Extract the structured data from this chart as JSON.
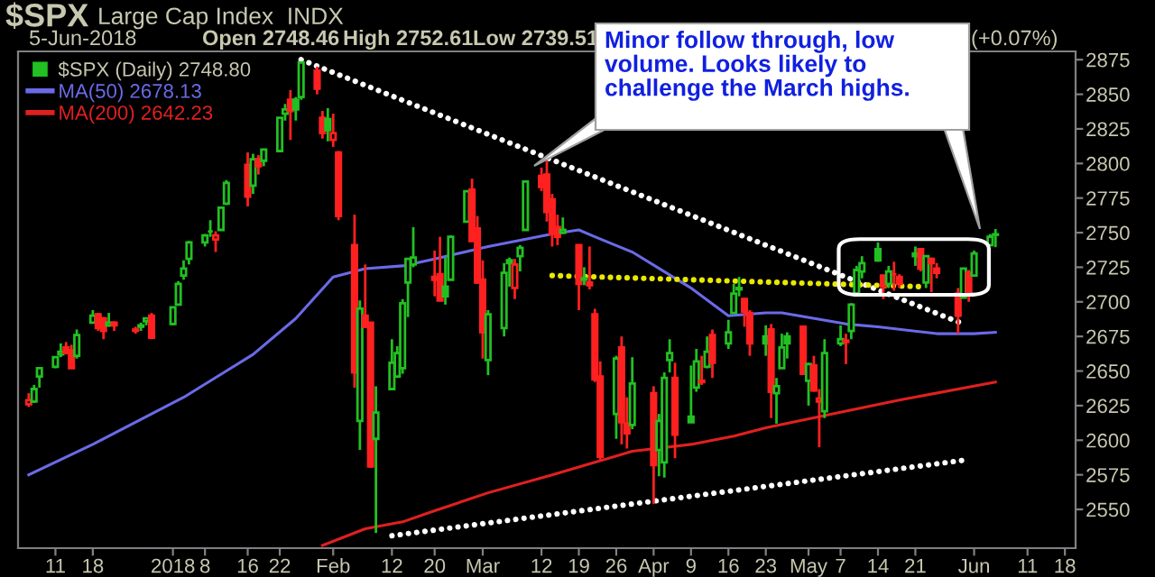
{
  "chart_data": {
    "type": "candlestick",
    "title": "$SPX",
    "subtitle": "Large Cap Index  INDX",
    "annotations": [
      "5-Jun-2018",
      "Open 2748.46",
      "High 2752.61",
      "Low 2739.51",
      "(+0.07%)",
      "Minor follow through, low\nvolume. Looks likely to\nchallenge the March highs."
    ],
    "x": [
      "2017-12-06",
      "2017-12-07",
      "2017-12-08",
      "2017-12-11",
      "2017-12-12",
      "2017-12-13",
      "2017-12-14",
      "2017-12-15",
      "2017-12-18",
      "2017-12-19",
      "2017-12-20",
      "2017-12-21",
      "2017-12-22",
      "2017-12-26",
      "2017-12-27",
      "2017-12-28",
      "2017-12-29",
      "2018-01-02",
      "2018-01-03",
      "2018-01-04",
      "2018-01-05",
      "2018-01-08",
      "2018-01-09",
      "2018-01-10",
      "2018-01-11",
      "2018-01-12",
      "2018-01-16",
      "2018-01-17",
      "2018-01-18",
      "2018-01-19",
      "2018-01-22",
      "2018-01-23",
      "2018-01-24",
      "2018-01-25",
      "2018-01-26",
      "2018-01-29",
      "2018-01-30",
      "2018-01-31",
      "2018-02-01",
      "2018-02-02",
      "2018-02-05",
      "2018-02-06",
      "2018-02-07",
      "2018-02-08",
      "2018-02-09",
      "2018-02-12",
      "2018-02-13",
      "2018-02-14",
      "2018-02-15",
      "2018-02-16",
      "2018-02-20",
      "2018-02-21",
      "2018-02-22",
      "2018-02-23",
      "2018-02-26",
      "2018-02-27",
      "2018-02-28",
      "2018-03-01",
      "2018-03-02",
      "2018-03-05",
      "2018-03-06",
      "2018-03-07",
      "2018-03-08",
      "2018-03-09",
      "2018-03-12",
      "2018-03-13",
      "2018-03-14",
      "2018-03-15",
      "2018-03-16",
      "2018-03-19",
      "2018-03-20",
      "2018-03-21",
      "2018-03-22",
      "2018-03-23",
      "2018-03-26",
      "2018-03-27",
      "2018-03-28",
      "2018-03-29",
      "2018-04-02",
      "2018-04-03",
      "2018-04-04",
      "2018-04-05",
      "2018-04-06",
      "2018-04-09",
      "2018-04-10",
      "2018-04-11",
      "2018-04-12",
      "2018-04-13",
      "2018-04-16",
      "2018-04-17",
      "2018-04-18",
      "2018-04-19",
      "2018-04-20",
      "2018-04-23",
      "2018-04-24",
      "2018-04-25",
      "2018-04-26",
      "2018-04-27",
      "2018-04-30",
      "2018-05-01",
      "2018-05-02",
      "2018-05-03",
      "2018-05-04",
      "2018-05-07",
      "2018-05-08",
      "2018-05-09",
      "2018-05-10",
      "2018-05-11",
      "2018-05-14",
      "2018-05-15",
      "2018-05-16",
      "2018-05-17",
      "2018-05-18",
      "2018-05-21",
      "2018-05-22",
      "2018-05-23",
      "2018-05-24",
      "2018-05-25",
      "2018-05-29",
      "2018-05-30",
      "2018-05-31",
      "2018-06-01",
      "2018-06-04",
      "2018-06-05"
    ],
    "xlim": [
      "2017-12-04",
      "2018-06-20"
    ],
    "xticks": [
      {
        "value": "2017-12-11",
        "label": "11"
      },
      {
        "value": "2017-12-18",
        "label": "18"
      },
      {
        "value": "2018-01-02",
        "label": "2018"
      },
      {
        "value": "2018-01-08",
        "label": "8"
      },
      {
        "value": "2018-01-16",
        "label": "16"
      },
      {
        "value": "2018-01-22",
        "label": "22"
      },
      {
        "value": "2018-02-01",
        "label": "Feb"
      },
      {
        "value": "2018-02-12",
        "label": "12"
      },
      {
        "value": "2018-02-20",
        "label": "20"
      },
      {
        "value": "2018-03-01",
        "label": "Mar"
      },
      {
        "value": "2018-03-12",
        "label": "12"
      },
      {
        "value": "2018-03-19",
        "label": "19"
      },
      {
        "value": "2018-03-26",
        "label": "26"
      },
      {
        "value": "2018-04-02",
        "label": "Apr"
      },
      {
        "value": "2018-04-09",
        "label": "9"
      },
      {
        "value": "2018-04-16",
        "label": "16"
      },
      {
        "value": "2018-04-23",
        "label": "23"
      },
      {
        "value": "2018-05-01",
        "label": "May"
      },
      {
        "value": "2018-05-07",
        "label": "7"
      },
      {
        "value": "2018-05-14",
        "label": "14"
      },
      {
        "value": "2018-05-21",
        "label": "21"
      },
      {
        "value": "2018-06-01",
        "label": "Jun"
      },
      {
        "value": "2018-06-11",
        "label": "11"
      },
      {
        "value": "2018-06-18",
        "label": "18"
      }
    ],
    "ylim": [
      2522,
      2881
    ],
    "yticks": [
      2550,
      2575,
      2600,
      2625,
      2650,
      2675,
      2700,
      2725,
      2750,
      2775,
      2800,
      2825,
      2850,
      2875
    ],
    "legend": "top left",
    "series": [
      {
        "type": "candlestick",
        "name": "$SPX (Daily) 2748.80",
        "color": "#22c022",
        "ohlc": [
          [
            2626,
            2634,
            2624,
            2629
          ],
          [
            2628,
            2640,
            2627,
            2637
          ],
          [
            2646,
            2652,
            2638,
            2652
          ],
          [
            2653,
            2660,
            2652,
            2660
          ],
          [
            2662,
            2670,
            2660,
            2664
          ],
          [
            2667,
            2671,
            2662,
            2663
          ],
          [
            2665,
            2669,
            2652,
            2652
          ],
          [
            2661,
            2680,
            2659,
            2676
          ],
          [
            2685,
            2694,
            2685,
            2690
          ],
          [
            2691,
            2692,
            2679,
            2681
          ],
          [
            2688,
            2689,
            2673,
            2679
          ],
          [
            2683,
            2692,
            2682,
            2685
          ],
          [
            2685,
            2686,
            2679,
            2683
          ],
          [
            2679,
            2682,
            2677,
            2680
          ],
          [
            2682,
            2685,
            2679,
            2683
          ],
          [
            2686,
            2688,
            2683,
            2688
          ],
          [
            2690,
            2692,
            2673,
            2674
          ],
          [
            2684,
            2696,
            2683,
            2696
          ],
          [
            2698,
            2715,
            2698,
            2713
          ],
          [
            2719,
            2730,
            2716,
            2724
          ],
          [
            2731,
            2744,
            2727,
            2743
          ],
          [
            2743,
            2749,
            2740,
            2748
          ],
          [
            2751,
            2759,
            2747,
            2751
          ],
          [
            2745,
            2751,
            2736,
            2748
          ],
          [
            2752,
            2768,
            2752,
            2768
          ],
          [
            2771,
            2788,
            2770,
            2786
          ],
          [
            2799,
            2808,
            2769,
            2776
          ],
          [
            2784,
            2807,
            2778,
            2803
          ],
          [
            2803,
            2806,
            2792,
            2798
          ],
          [
            2802,
            2810,
            2798,
            2810
          ],
          [
            2809,
            2833,
            2808,
            2833
          ],
          [
            2836,
            2843,
            2831,
            2839
          ],
          [
            2846,
            2853,
            2817,
            2838
          ],
          [
            2846,
            2848,
            2831,
            2839
          ],
          [
            2848,
            2873,
            2846,
            2873
          ],
          [
            2867,
            2870,
            2850,
            2854
          ],
          [
            2833,
            2838,
            2818,
            2822
          ],
          [
            2832,
            2840,
            2816,
            2824
          ],
          [
            2817,
            2836,
            2812,
            2822
          ],
          [
            2808,
            2809,
            2759,
            2762
          ],
          [
            2741,
            2763,
            2638,
            2649
          ],
          [
            2614,
            2701,
            2593,
            2695
          ],
          [
            2690,
            2727,
            2681,
            2682
          ],
          [
            2685,
            2685,
            2580,
            2581
          ],
          [
            2601,
            2639,
            2533,
            2620
          ],
          [
            2637,
            2673,
            2637,
            2656
          ],
          [
            2646,
            2668,
            2645,
            2663
          ],
          [
            2652,
            2702,
            2648,
            2699
          ],
          [
            2714,
            2731,
            2689,
            2731
          ],
          [
            2727,
            2754,
            2725,
            2732
          ],
          [
            2718,
            2737,
            2704,
            2716
          ],
          [
            2720,
            2747,
            2701,
            2701
          ],
          [
            2711,
            2732,
            2698,
            2704
          ],
          [
            2716,
            2748,
            2716,
            2747
          ],
          [
            2758,
            2780,
            2758,
            2780
          ],
          [
            2781,
            2789,
            2744,
            2744
          ],
          [
            2753,
            2762,
            2713,
            2714
          ],
          [
            2716,
            2730,
            2659,
            2678
          ],
          [
            2658,
            2694,
            2647,
            2691
          ],
          [
            2681,
            2728,
            2675,
            2721
          ],
          [
            2730,
            2732,
            2711,
            2728
          ],
          [
            2710,
            2731,
            2702,
            2727
          ],
          [
            2733,
            2741,
            2722,
            2739
          ],
          [
            2752,
            2787,
            2752,
            2787
          ],
          [
            2791,
            2797,
            2780,
            2783
          ],
          [
            2792,
            2802,
            2758,
            2765
          ],
          [
            2774,
            2778,
            2740,
            2749
          ],
          [
            2754,
            2763,
            2741,
            2747
          ],
          [
            2750,
            2761,
            2749,
            2752
          ],
          [
            2741,
            2741,
            2694,
            2713
          ],
          [
            2716,
            2725,
            2712,
            2717
          ],
          [
            2714,
            2740,
            2709,
            2712
          ],
          [
            2691,
            2695,
            2642,
            2644
          ],
          [
            2646,
            2657,
            2586,
            2588
          ],
          [
            2619,
            2661,
            2601,
            2659
          ],
          [
            2667,
            2675,
            2597,
            2613
          ],
          [
            2612,
            2631,
            2594,
            2605
          ],
          [
            2611,
            2660,
            2608,
            2641
          ],
          [
            2634,
            2639,
            2554,
            2582
          ],
          [
            2593,
            2619,
            2574,
            2614
          ],
          [
            2584,
            2649,
            2573,
            2645
          ],
          [
            2658,
            2673,
            2649,
            2663
          ],
          [
            2645,
            2656,
            2587,
            2604
          ],
          [
            2617,
            2654,
            2613,
            2613
          ],
          [
            2638,
            2666,
            2635,
            2657
          ],
          [
            2643,
            2661,
            2640,
            2642
          ],
          [
            2653,
            2675,
            2652,
            2664
          ],
          [
            2676,
            2680,
            2645,
            2656
          ],
          [
            2670,
            2687,
            2666,
            2678
          ],
          [
            2692,
            2713,
            2692,
            2706
          ],
          [
            2710,
            2718,
            2704,
            2709
          ],
          [
            2702,
            2703,
            2682,
            2693
          ],
          [
            2692,
            2694,
            2661,
            2670
          ],
          [
            2675,
            2683,
            2661,
            2670
          ],
          [
            2680,
            2684,
            2616,
            2635
          ],
          [
            2634,
            2645,
            2612,
            2639
          ],
          [
            2652,
            2677,
            2652,
            2667
          ],
          [
            2675,
            2678,
            2659,
            2670
          ],
          [
            2682,
            2683,
            2648,
            2648
          ],
          [
            2643,
            2656,
            2625,
            2655
          ],
          [
            2654,
            2661,
            2635,
            2636
          ],
          [
            2628,
            2637,
            2595,
            2630
          ],
          [
            2621,
            2673,
            2616,
            2663
          ],
          [
            2670,
            2683,
            2668,
            2673
          ],
          [
            2671,
            2677,
            2655,
            2672
          ],
          [
            2679,
            2699,
            2673,
            2698
          ],
          [
            2706,
            2726,
            2705,
            2723
          ],
          [
            2722,
            2733,
            2717,
            2728
          ],
          [
            2738,
            2743,
            2729,
            2730
          ],
          [
            2719,
            2719,
            2702,
            2711
          ],
          [
            2713,
            2726,
            2710,
            2722
          ],
          [
            2720,
            2729,
            2708,
            2720
          ],
          [
            2718,
            2720,
            2710,
            2713
          ],
          [
            2735,
            2740,
            2726,
            2733
          ],
          [
            2738,
            2739,
            2722,
            2724
          ],
          [
            2714,
            2733,
            2710,
            2733
          ],
          [
            2731,
            2732,
            2707,
            2728
          ],
          [
            2724,
            2728,
            2717,
            2721
          ],
          [
            2706,
            2710,
            2677,
            2690
          ],
          [
            2703,
            2724,
            2703,
            2724
          ],
          [
            2721,
            2723,
            2700,
            2705
          ],
          [
            2719,
            2737,
            2719,
            2735
          ],
          [
            2741,
            2749,
            2741,
            2747
          ],
          [
            2748.46,
            2752.61,
            2739.51,
            2748.8
          ]
        ],
        "colors": [
          "#ff2020",
          "#22c022",
          "#22c022",
          "#22c022",
          "#22c022",
          "#ff2020",
          "#ff2020",
          "#22c022",
          "#22c022",
          "#ff2020",
          "#ff2020",
          "#22c022",
          "#ff2020",
          "#ff2020",
          "#22c022",
          "#22c022",
          "#ff2020",
          "#22c022",
          "#22c022",
          "#22c022",
          "#22c022",
          "#22c022",
          "#22c022",
          "#ff2020",
          "#22c022",
          "#22c022",
          "#ff2020",
          "#22c022",
          "#ff2020",
          "#22c022",
          "#22c022",
          "#22c022",
          "#ff2020",
          "#22c022",
          "#22c022",
          "#ff2020",
          "#ff2020",
          "#22c022",
          "#ff2020",
          "#ff2020",
          "#ff2020",
          "#22c022",
          "#ff2020",
          "#ff2020",
          "#22c022",
          "#22c022",
          "#22c022",
          "#22c022",
          "#22c022",
          "#22c022",
          "#ff2020",
          "#ff2020",
          "#22c022",
          "#22c022",
          "#22c022",
          "#ff2020",
          "#ff2020",
          "#ff2020",
          "#22c022",
          "#22c022",
          "#22c022",
          "#ff2020",
          "#22c022",
          "#22c022",
          "#ff2020",
          "#ff2020",
          "#ff2020",
          "#ff2020",
          "#22c022",
          "#ff2020",
          "#22c022",
          "#ff2020",
          "#ff2020",
          "#ff2020",
          "#22c022",
          "#ff2020",
          "#ff2020",
          "#22c022",
          "#ff2020",
          "#22c022",
          "#22c022",
          "#22c022",
          "#ff2020",
          "#22c022",
          "#22c022",
          "#ff2020",
          "#22c022",
          "#ff2020",
          "#22c022",
          "#22c022",
          "#22c022",
          "#ff2020",
          "#ff2020",
          "#22c022",
          "#ff2020",
          "#22c022",
          "#22c022",
          "#22c022",
          "#ff2020",
          "#22c022",
          "#ff2020",
          "#ff2020",
          "#22c022",
          "#22c022",
          "#ff2020",
          "#22c022",
          "#22c022",
          "#22c022",
          "#22c022",
          "#ff2020",
          "#22c022",
          "#ff2020",
          "#ff2020",
          "#22c022",
          "#ff2020",
          "#22c022",
          "#ff2020",
          "#ff2020",
          "#ff2020",
          "#22c022",
          "#ff2020",
          "#22c022",
          "#22c022",
          "#22c022"
        ]
      },
      {
        "type": "line",
        "name": "MA(50) 2678.13",
        "color": "#6a6ae8",
        "x": [
          "2017-12-06",
          "2017-12-18",
          "2018-01-04",
          "2018-01-17",
          "2018-01-25",
          "2018-02-01",
          "2018-02-07",
          "2018-02-14",
          "2018-02-20",
          "2018-03-02",
          "2018-03-14",
          "2018-03-19",
          "2018-03-22",
          "2018-03-29",
          "2018-04-09",
          "2018-04-16",
          "2018-04-23",
          "2018-04-26",
          "2018-05-08",
          "2018-05-14",
          "2018-05-25",
          "2018-06-01",
          "2018-06-05"
        ],
        "values": [
          2575,
          2597,
          2631,
          2662,
          2688,
          2718,
          2724,
          2726,
          2731,
          2740,
          2749,
          2752,
          2747,
          2736,
          2710,
          2690,
          2692,
          2692,
          2684,
          2682,
          2677,
          2677,
          2678
        ]
      },
      {
        "type": "line",
        "name": "MA(200) 2642.23",
        "color": "#e02020",
        "x": [
          "2018-01-30",
          "2018-02-07",
          "2018-02-14",
          "2018-02-20",
          "2018-03-02",
          "2018-03-14",
          "2018-03-22",
          "2018-03-29",
          "2018-04-09",
          "2018-04-17",
          "2018-04-23",
          "2018-05-08",
          "2018-05-18",
          "2018-06-05"
        ],
        "values": [
          2524,
          2536,
          2541,
          2549,
          2562,
          2575,
          2584,
          2592,
          2597,
          2603,
          2609,
          2621,
          2629,
          2642
        ]
      },
      {
        "type": "line",
        "color": "#ffffff",
        "line_style": "dotted",
        "x": [
          "2018-01-26",
          "2018-05-30"
        ],
        "values": [
          2875,
          2684
        ]
      },
      {
        "type": "line",
        "color": "#ffffff",
        "line_style": "dotted",
        "x": [
          "2018-02-12",
          "2018-05-31"
        ],
        "values": [
          2531,
          2586
        ]
      },
      {
        "type": "line",
        "color": "#e8e800",
        "line_style": "dotted",
        "x": [
          "2018-03-14",
          "2018-05-22"
        ],
        "values": [
          2719,
          2711
        ]
      }
    ]
  }
}
